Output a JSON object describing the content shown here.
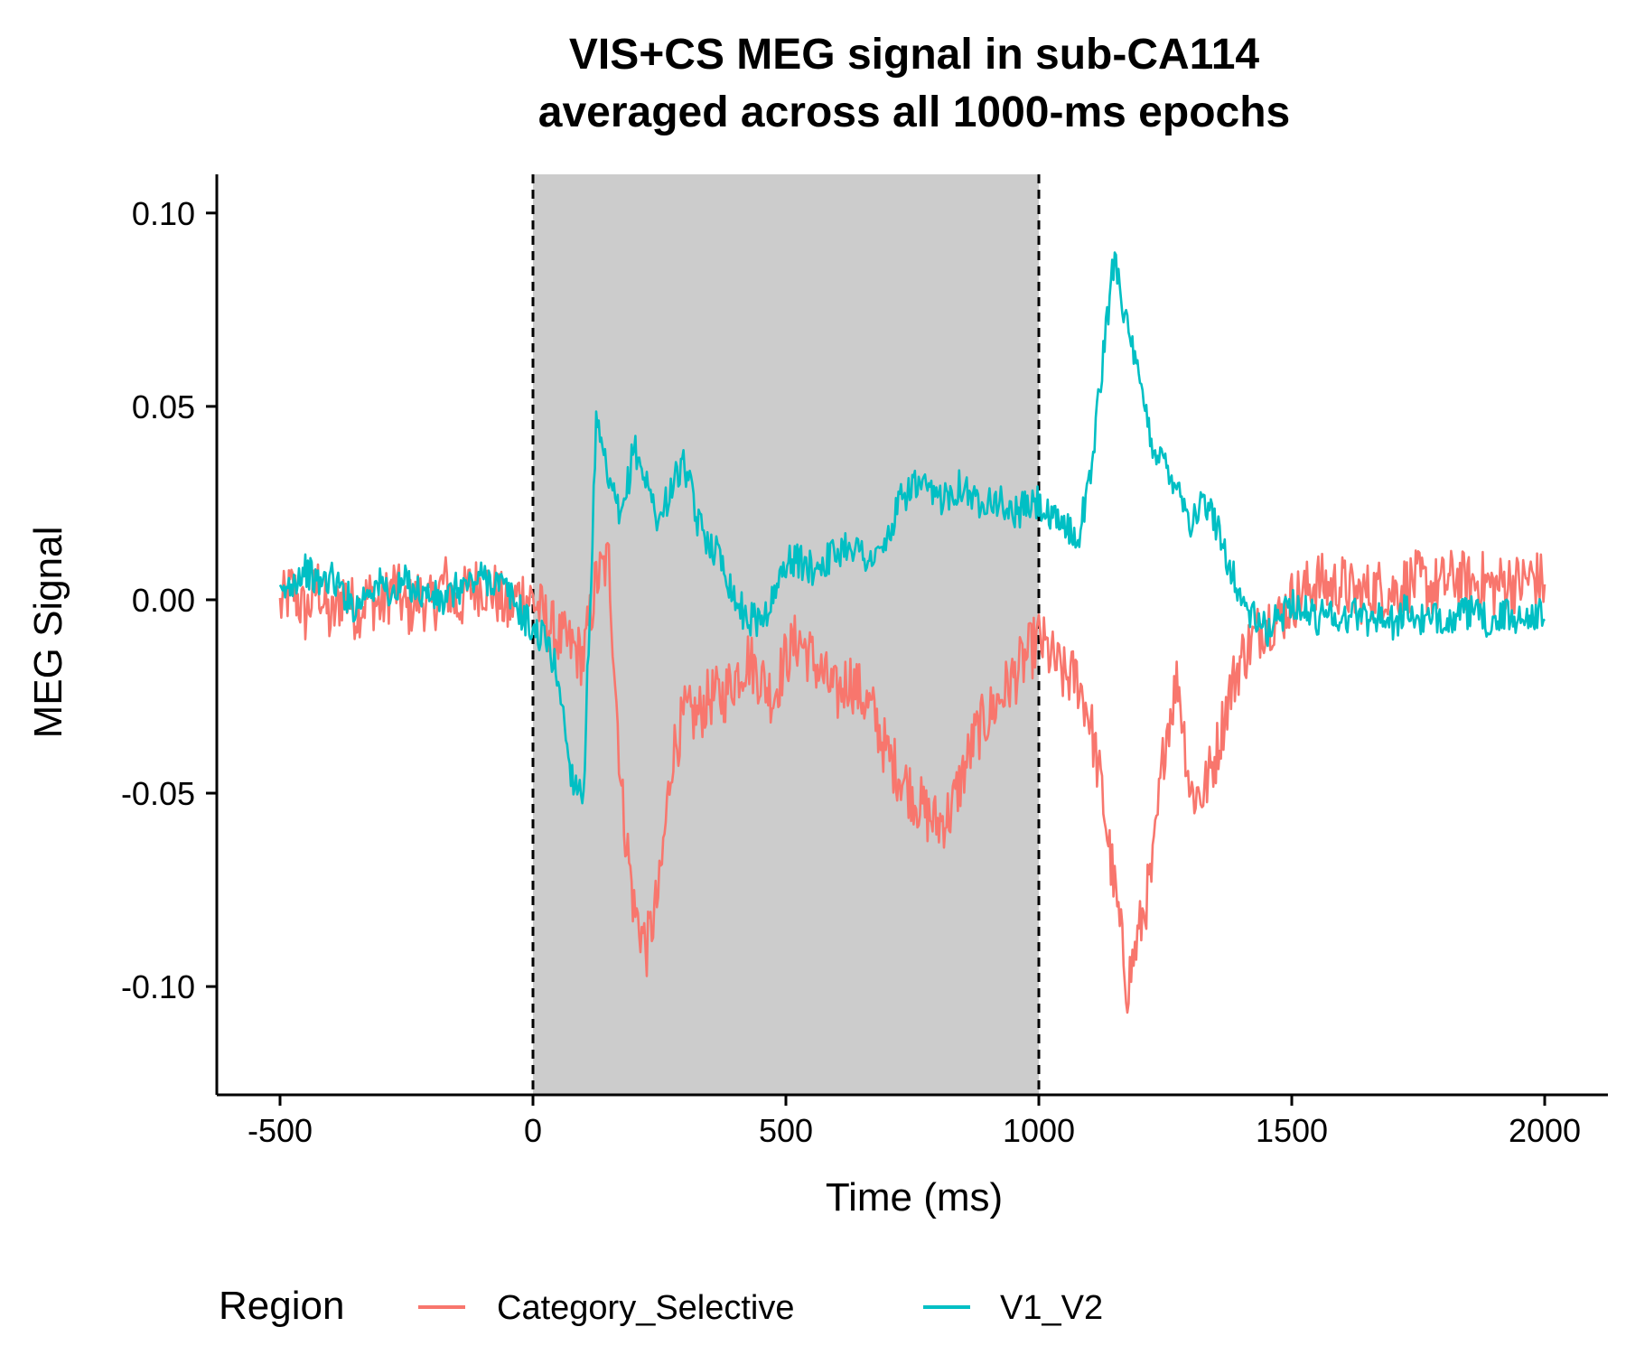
{
  "chart_data": {
    "type": "line",
    "title": [
      "VIS+CS MEG signal in sub-CA114",
      "averaged across all 1000-ms epochs"
    ],
    "xlabel": "Time (ms)",
    "ylabel": "MEG Signal",
    "xlim": [
      -625,
      2125
    ],
    "ylim": [
      -0.128,
      0.11
    ],
    "x_ticks": [
      -500,
      0,
      500,
      1000,
      1500,
      2000
    ],
    "x_tick_labels": [
      "-500",
      "0",
      "500",
      "1000",
      "1500",
      "2000"
    ],
    "y_ticks": [
      -0.1,
      -0.05,
      0.0,
      0.05,
      0.1
    ],
    "y_tick_labels": [
      "-0.10",
      "-0.05",
      "0.00",
      "0.05",
      "0.10"
    ],
    "shaded_region": {
      "x_start": 0,
      "x_end": 1000,
      "color": "#cccccc"
    },
    "vlines": [
      0,
      1000
    ],
    "grid": false,
    "legend": {
      "title": "Region",
      "position": "bottom"
    },
    "series": [
      {
        "name": "Category_Selective",
        "color": "#F8766D",
        "x": [
          -500,
          -475,
          -450,
          -425,
          -400,
          -375,
          -350,
          -325,
          -300,
          -275,
          -250,
          -225,
          -200,
          -175,
          -150,
          -125,
          -100,
          -75,
          -50,
          -25,
          0,
          25,
          50,
          75,
          100,
          125,
          150,
          175,
          200,
          225,
          250,
          275,
          300,
          325,
          350,
          375,
          400,
          425,
          450,
          475,
          500,
          525,
          550,
          575,
          600,
          625,
          650,
          675,
          700,
          725,
          750,
          775,
          800,
          825,
          850,
          875,
          900,
          925,
          950,
          975,
          1000,
          1025,
          1050,
          1075,
          1100,
          1125,
          1150,
          1175,
          1200,
          1225,
          1250,
          1275,
          1300,
          1325,
          1350,
          1375,
          1400,
          1425,
          1450,
          1475,
          1500,
          1525,
          1550,
          1575,
          1600,
          1625,
          1650,
          1675,
          1700,
          1725,
          1750,
          1775,
          1800,
          1825,
          1850,
          1875,
          1900,
          1925,
          1950,
          1975,
          2000
        ],
        "y": [
          -0.002,
          0.003,
          -0.004,
          0.004,
          -0.006,
          0.002,
          -0.003,
          0.001,
          -0.002,
          0.004,
          -0.003,
          0.001,
          -0.002,
          0.005,
          -0.002,
          0.003,
          0.004,
          0.002,
          -0.003,
          0.002,
          0.0,
          -0.005,
          -0.01,
          -0.012,
          -0.015,
          0.005,
          0.01,
          -0.05,
          -0.08,
          -0.09,
          -0.075,
          -0.04,
          -0.03,
          -0.03,
          -0.025,
          -0.025,
          -0.02,
          -0.015,
          -0.02,
          -0.025,
          -0.015,
          -0.01,
          -0.015,
          -0.02,
          -0.025,
          -0.02,
          -0.025,
          -0.03,
          -0.04,
          -0.045,
          -0.05,
          -0.055,
          -0.058,
          -0.055,
          -0.045,
          -0.035,
          -0.03,
          -0.025,
          -0.02,
          -0.015,
          -0.01,
          -0.015,
          -0.02,
          -0.02,
          -0.03,
          -0.05,
          -0.075,
          -0.1,
          -0.085,
          -0.07,
          -0.035,
          -0.02,
          -0.05,
          -0.05,
          -0.04,
          -0.025,
          -0.015,
          -0.01,
          -0.005,
          -0.005,
          0.0,
          0.002,
          0.005,
          0.003,
          0.004,
          0.001,
          0.002,
          0.003,
          0.002,
          0.004,
          0.005,
          0.003,
          0.004,
          0.006,
          0.004,
          0.005,
          0.003,
          0.005,
          0.004,
          0.006,
          0.004
        ]
      },
      {
        "name": "V1_V2",
        "color": "#00BFC4",
        "x": [
          -500,
          -475,
          -450,
          -425,
          -400,
          -375,
          -350,
          -325,
          -300,
          -275,
          -250,
          -225,
          -200,
          -175,
          -150,
          -125,
          -100,
          -75,
          -50,
          -25,
          0,
          25,
          50,
          75,
          100,
          125,
          150,
          175,
          200,
          225,
          250,
          275,
          300,
          325,
          350,
          375,
          400,
          425,
          450,
          475,
          500,
          525,
          550,
          575,
          600,
          625,
          650,
          675,
          700,
          725,
          750,
          775,
          800,
          825,
          850,
          875,
          900,
          925,
          950,
          975,
          1000,
          1025,
          1050,
          1075,
          1100,
          1125,
          1150,
          1175,
          1200,
          1225,
          1250,
          1275,
          1300,
          1325,
          1350,
          1375,
          1400,
          1425,
          1450,
          1475,
          1500,
          1525,
          1550,
          1575,
          1600,
          1625,
          1650,
          1675,
          1700,
          1725,
          1750,
          1775,
          1800,
          1825,
          1850,
          1875,
          1900,
          1925,
          1950,
          1975,
          2000
        ],
        "y": [
          0.0,
          0.005,
          0.008,
          0.004,
          0.006,
          0.002,
          -0.002,
          0.003,
          0.004,
          0.001,
          0.005,
          0.002,
          0.001,
          -0.001,
          0.003,
          0.004,
          0.006,
          0.005,
          0.002,
          -0.003,
          -0.008,
          -0.01,
          -0.02,
          -0.045,
          -0.05,
          0.045,
          0.03,
          0.02,
          0.04,
          0.03,
          0.02,
          0.03,
          0.035,
          0.02,
          0.015,
          0.01,
          0.0,
          -0.005,
          -0.005,
          0.0,
          0.01,
          0.01,
          0.008,
          0.01,
          0.012,
          0.015,
          0.012,
          0.01,
          0.015,
          0.025,
          0.03,
          0.028,
          0.026,
          0.028,
          0.03,
          0.025,
          0.027,
          0.025,
          0.022,
          0.024,
          0.025,
          0.02,
          0.02,
          0.015,
          0.03,
          0.06,
          0.09,
          0.07,
          0.055,
          0.04,
          0.035,
          0.03,
          0.02,
          0.025,
          0.02,
          0.01,
          0.0,
          -0.005,
          -0.008,
          -0.005,
          0.0,
          -0.003,
          -0.005,
          -0.002,
          -0.006,
          -0.003,
          -0.005,
          -0.004,
          -0.006,
          -0.003,
          -0.005,
          -0.006,
          -0.004,
          -0.005,
          -0.003,
          -0.005,
          -0.006,
          -0.004,
          -0.005,
          -0.003,
          -0.005
        ]
      }
    ]
  }
}
